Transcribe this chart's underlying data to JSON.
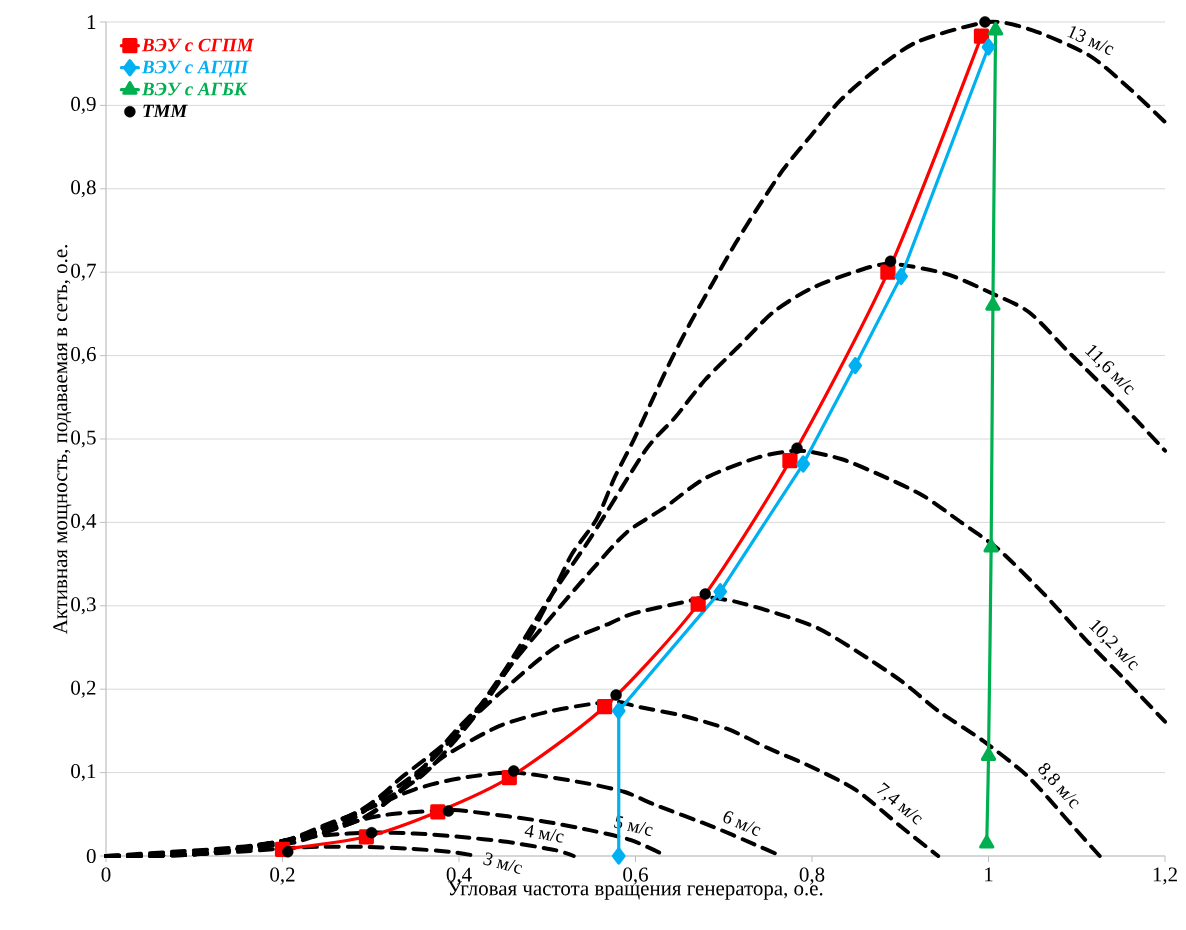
{
  "chart_data": {
    "type": "line",
    "xlabel": "Угловая частота вращения генератора, о.е.",
    "ylabel": "Активная мощность, подаваемая в сеть, о.е.",
    "xlim": [
      0,
      1.2
    ],
    "ylim": [
      0,
      1
    ],
    "xticks": [
      0,
      {
        "value": 0.2,
        "label": "0,2"
      },
      {
        "value": 0.4,
        "label": "0,4"
      },
      {
        "value": 0.6,
        "label": "0,6"
      },
      {
        "value": 0.8,
        "label": "0,8"
      },
      1,
      {
        "value": 1.2,
        "label": "1,2"
      }
    ],
    "yticks": [
      0,
      {
        "value": 0.1,
        "label": "0,1"
      },
      {
        "value": 0.2,
        "label": "0,2"
      },
      {
        "value": 0.3,
        "label": "0,3"
      },
      {
        "value": 0.4,
        "label": "0,4"
      },
      {
        "value": 0.5,
        "label": "0,5"
      },
      {
        "value": 0.6,
        "label": "0,6"
      },
      {
        "value": 0.7,
        "label": "0,7"
      },
      {
        "value": 0.8,
        "label": "0,8"
      },
      {
        "value": 0.9,
        "label": "0,9"
      },
      1
    ],
    "grid": "y",
    "legend": "top left",
    "series": [
      {
        "name": "3 м/с",
        "color": "#000000",
        "line_style": "dashed",
        "marker": "none",
        "x": [
          0,
          0.1,
          0.15,
          0.2,
          0.24,
          0.29,
          0.34,
          0.39,
          0.42
        ],
        "values": [
          0,
          0.002,
          0.005,
          0.009,
          0.011,
          0.011,
          0.009,
          0.005,
          0
        ]
      },
      {
        "name": "4 м/с",
        "color": "#000000",
        "line_style": "dashed",
        "marker": "none",
        "x": [
          0,
          0.1,
          0.15,
          0.2,
          0.25,
          0.3,
          0.35,
          0.4,
          0.454,
          0.509,
          0.53
        ],
        "values": [
          0,
          0.002,
          0.009,
          0.018,
          0.025,
          0.028,
          0.027,
          0.023,
          0.017,
          0.007,
          0
        ]
      },
      {
        "name": "5 м/с",
        "color": "#000000",
        "line_style": "dashed",
        "marker": "none",
        "x": [
          0,
          0.1,
          0.2,
          0.25,
          0.3,
          0.33,
          0.388,
          0.415,
          0.493,
          0.548,
          0.595,
          0.635
        ],
        "values": [
          0,
          0.002,
          0.018,
          0.033,
          0.046,
          0.051,
          0.055,
          0.053,
          0.042,
          0.031,
          0.019,
          0
        ]
      },
      {
        "name": "6 м/с",
        "color": "#000000",
        "line_style": "dashed",
        "marker": "none",
        "x": [
          0,
          0.1,
          0.2,
          0.25,
          0.3,
          0.35,
          0.4,
          0.462,
          0.54,
          0.587,
          0.623,
          0.688,
          0.739,
          0.765
        ],
        "values": [
          0,
          0.002,
          0.018,
          0.038,
          0.058,
          0.08,
          0.093,
          0.1,
          0.088,
          0.077,
          0.061,
          0.035,
          0.012,
          0
        ]
      },
      {
        "name": "7,4 м/с",
        "color": "#000000",
        "line_style": "dashed",
        "marker": "none",
        "x": [
          0,
          0.1,
          0.2,
          0.226,
          0.29,
          0.337,
          0.384,
          0.446,
          0.501,
          0.548,
          0.578,
          0.603,
          0.654,
          0.705,
          0.751,
          0.799,
          0.85,
          0.901,
          0.943
        ],
        "values": [
          0,
          0.002,
          0.014,
          0.02,
          0.045,
          0.08,
          0.12,
          0.156,
          0.173,
          0.182,
          0.185,
          0.179,
          0.168,
          0.152,
          0.129,
          0.107,
          0.079,
          0.035,
          0
        ]
      },
      {
        "name": "8,8 м/с",
        "color": "#000000",
        "line_style": "dashed",
        "marker": "none",
        "x": [
          0,
          0.1,
          0.2,
          0.29,
          0.337,
          0.384,
          0.446,
          0.509,
          0.571,
          0.598,
          0.657,
          0.68,
          0.713,
          0.76,
          0.807,
          0.85,
          0.901,
          0.943,
          0.994,
          1.046,
          1.092,
          1.126
        ],
        "values": [
          0,
          0.002,
          0.016,
          0.056,
          0.096,
          0.135,
          0.195,
          0.25,
          0.279,
          0.291,
          0.305,
          0.31,
          0.305,
          0.291,
          0.273,
          0.246,
          0.21,
          0.174,
          0.138,
          0.094,
          0.04,
          0
        ]
      },
      {
        "name": "10,2 м/с",
        "color": "#000000",
        "line_style": "dashed",
        "marker": "none",
        "x": [
          0,
          0.1,
          0.2,
          0.27,
          0.317,
          0.36,
          0.396,
          0.427,
          0.462,
          0.5,
          0.548,
          0.59,
          0.632,
          0.679,
          0.739,
          0.786,
          0.833,
          0.879,
          0.926,
          0.969,
          1.011,
          1.063,
          1.114,
          1.156,
          1.2
        ],
        "values": [
          0,
          0.002,
          0.017,
          0.039,
          0.073,
          0.107,
          0.15,
          0.184,
          0.233,
          0.281,
          0.34,
          0.388,
          0.417,
          0.453,
          0.478,
          0.486,
          0.476,
          0.456,
          0.432,
          0.4,
          0.368,
          0.314,
          0.255,
          0.21,
          0.161
        ]
      },
      {
        "name": "11,6 м/с",
        "color": "#000000",
        "line_style": "dashed",
        "marker": "none",
        "x": [
          0,
          0.1,
          0.2,
          0.3,
          0.4,
          0.45,
          0.5,
          0.55,
          0.611,
          0.645,
          0.679,
          0.717,
          0.756,
          0.798,
          0.85,
          0.889,
          0.952,
          1.003,
          1.046,
          1.092,
          1.152,
          1.2
        ],
        "values": [
          0,
          0.003,
          0.018,
          0.05,
          0.149,
          0.22,
          0.305,
          0.383,
          0.486,
          0.526,
          0.571,
          0.611,
          0.652,
          0.68,
          0.701,
          0.71,
          0.698,
          0.675,
          0.652,
          0.603,
          0.54,
          0.486
        ]
      },
      {
        "name": "13 м/с",
        "color": "#000000",
        "line_style": "dashed",
        "marker": "none",
        "x": [
          0,
          0.075,
          0.12,
          0.169,
          0.223,
          0.271,
          0.317,
          0.36,
          0.396,
          0.427,
          0.454,
          0.482,
          0.505,
          0.528,
          0.556,
          0.576,
          0.598,
          0.62,
          0.64,
          0.662,
          0.688,
          0.713,
          0.739,
          0.768,
          0.799,
          0.832,
          0.875,
          0.921,
          1.0,
          1.05,
          1.114,
          1.16,
          1.2
        ],
        "values": [
          0,
          0.005,
          0.008,
          0.013,
          0.023,
          0.044,
          0.068,
          0.098,
          0.139,
          0.18,
          0.222,
          0.267,
          0.313,
          0.362,
          0.404,
          0.453,
          0.499,
          0.549,
          0.594,
          0.639,
          0.688,
          0.734,
          0.778,
          0.824,
          0.864,
          0.906,
          0.945,
          0.977,
          1.0,
          0.99,
          0.96,
          0.92,
          0.88
        ]
      },
      {
        "name": "ВЭУ с СГПМ",
        "color": "#ff0000",
        "line_style": "solid",
        "marker": "square",
        "x": [
          0.2,
          0.295,
          0.376,
          0.457,
          0.565,
          0.671,
          0.775,
          0.886,
          0.992
        ],
        "values": [
          0.008,
          0.023,
          0.053,
          0.094,
          0.179,
          0.302,
          0.474,
          0.7,
          0.983
        ]
      },
      {
        "name": "ВЭУ с АГДП",
        "color": "#00b0f0",
        "line_style": "solid",
        "marker": "diamond",
        "x": [
          0.581,
          0.581,
          0.696,
          0.79,
          0.849,
          0.901,
          1.0
        ],
        "values": [
          0,
          0.174,
          0.317,
          0.47,
          0.588,
          0.695,
          0.97
        ]
      },
      {
        "name": "ВЭУ с АГБК",
        "color": "#00b050",
        "line_style": "solid",
        "marker": "triangle",
        "x": [
          0.998,
          1.0,
          1.003,
          1.005,
          1.008
        ],
        "values": [
          0.015,
          0.12,
          0.37,
          0.66,
          0.99
        ]
      },
      {
        "type": "scatter",
        "name": "ТММ",
        "color": "#000000",
        "marker": "circle",
        "x": [
          0.206,
          0.301,
          0.388,
          0.462,
          0.578,
          0.679,
          0.783,
          0.889,
          0.996
        ],
        "values": [
          0.005,
          0.028,
          0.054,
          0.102,
          0.193,
          0.314,
          0.489,
          0.713,
          1.0
        ]
      }
    ]
  }
}
